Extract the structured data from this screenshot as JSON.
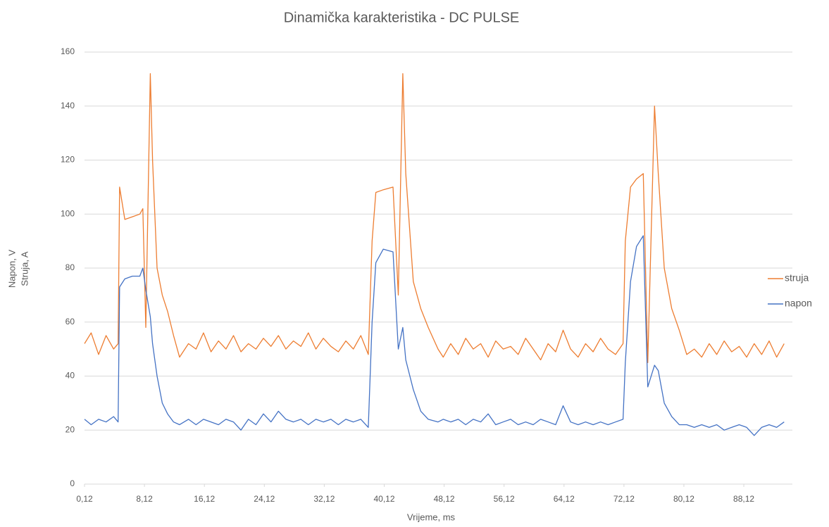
{
  "chart_data": {
    "type": "line",
    "title": "Dinamička karakteristika - DC PULSE",
    "xlabel": "Vrijeme, ms",
    "ylabel": [
      "Napon, V",
      "Struja, A"
    ],
    "x": [
      0.12,
      1,
      2,
      3,
      4,
      4.6,
      4.8,
      5.5,
      6.5,
      7.5,
      7.9,
      8.3,
      8.9,
      9.2,
      9.8,
      10.5,
      11.2,
      12,
      12.8,
      14,
      15,
      16,
      17,
      18,
      19,
      20,
      21,
      22,
      23,
      24,
      25,
      26,
      27,
      28,
      29,
      30,
      31,
      32,
      33,
      34,
      35,
      36,
      37,
      38,
      38.5,
      39,
      40,
      41.3,
      42,
      42.6,
      43,
      44,
      45,
      46,
      47.3,
      48,
      49,
      50,
      51,
      52,
      53,
      54,
      55,
      56,
      57,
      58,
      59,
      60,
      61,
      62,
      63,
      64,
      65,
      66,
      67,
      68,
      69,
      70,
      71,
      72,
      72.3,
      73,
      73.8,
      74.7,
      75.3,
      76.2,
      76.7,
      77.5,
      78.5,
      79.5,
      80.5,
      81.5,
      82.5,
      83.5,
      84.5,
      85.5,
      86.5,
      87.5,
      88.5,
      89.5,
      90.5,
      91.5,
      92.5,
      93.5
    ],
    "series": [
      {
        "name": "struja",
        "color": "#ed7d31",
        "values": [
          52,
          56,
          48,
          55,
          50,
          52,
          110,
          98,
          99,
          100,
          102,
          58,
          152,
          120,
          80,
          70,
          64,
          55,
          47,
          52,
          50,
          56,
          49,
          53,
          50,
          55,
          49,
          52,
          50,
          54,
          51,
          55,
          50,
          53,
          51,
          56,
          50,
          54,
          51,
          49,
          53,
          50,
          55,
          48,
          90,
          108,
          109,
          110,
          70,
          152,
          115,
          75,
          65,
          58,
          50,
          47,
          52,
          48,
          54,
          50,
          52,
          47,
          53,
          50,
          51,
          48,
          54,
          50,
          46,
          52,
          49,
          57,
          50,
          47,
          52,
          49,
          54,
          50,
          48,
          52,
          90,
          110,
          113,
          115,
          45,
          140,
          115,
          80,
          65,
          57,
          48,
          50,
          47,
          52,
          48,
          53,
          49,
          51,
          47,
          52,
          48,
          53,
          47,
          52
        ]
      },
      {
        "name": "napon",
        "color": "#4472c4",
        "values": [
          24,
          22,
          24,
          23,
          25,
          23,
          73,
          76,
          77,
          77,
          80,
          72,
          62,
          52,
          40,
          30,
          26,
          23,
          22,
          24,
          22,
          24,
          23,
          22,
          24,
          23,
          20,
          24,
          22,
          26,
          23,
          27,
          24,
          23,
          24,
          22,
          24,
          23,
          24,
          22,
          24,
          23,
          24,
          21,
          60,
          82,
          87,
          86,
          50,
          58,
          46,
          35,
          27,
          24,
          23,
          24,
          23,
          24,
          22,
          24,
          23,
          26,
          22,
          23,
          24,
          22,
          23,
          22,
          24,
          23,
          22,
          29,
          23,
          22,
          23,
          22,
          23,
          22,
          23,
          24,
          45,
          75,
          88,
          92,
          36,
          44,
          42,
          30,
          25,
          22,
          22,
          21,
          22,
          21,
          22,
          20,
          21,
          22,
          21,
          18,
          21,
          22,
          21,
          23
        ]
      }
    ],
    "xlim": [
      0.12,
      94.6
    ],
    "xticks": [
      {
        "value": 0.12,
        "label": "0,12"
      },
      {
        "value": 8.12,
        "label": "8,12"
      },
      {
        "value": 16.12,
        "label": "16,12"
      },
      {
        "value": 24.12,
        "label": "24,12"
      },
      {
        "value": 32.12,
        "label": "32,12"
      },
      {
        "value": 40.12,
        "label": "40,12"
      },
      {
        "value": 48.12,
        "label": "48,12"
      },
      {
        "value": 56.12,
        "label": "56,12"
      },
      {
        "value": 64.12,
        "label": "64,12"
      },
      {
        "value": 72.12,
        "label": "72,12"
      },
      {
        "value": 80.12,
        "label": "80,12"
      },
      {
        "value": 88.12,
        "label": "88,12"
      }
    ],
    "ylim": [
      0,
      160
    ],
    "yticks": [
      0,
      20,
      40,
      60,
      80,
      100,
      120,
      140,
      160
    ],
    "grid": true,
    "legend": "right"
  }
}
